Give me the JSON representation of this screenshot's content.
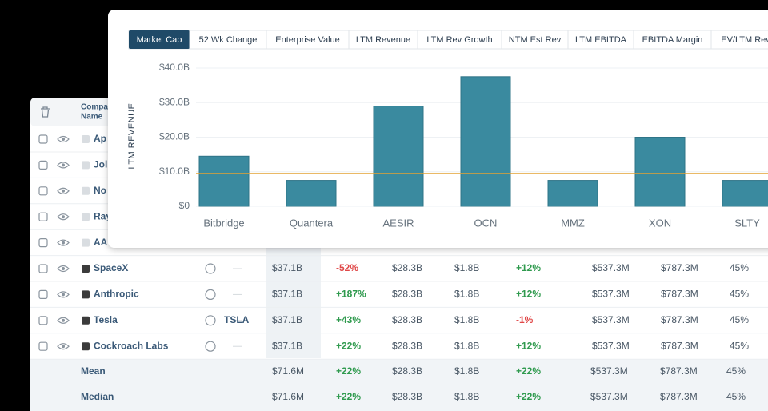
{
  "tabs": [
    "Market Cap",
    "52 Wk Change",
    "Enterprise Value",
    "LTM Revenue",
    "LTM Rev Growth",
    "NTM Est Rev",
    "LTM EBITDA",
    "EBITDA Margin",
    "EV/LTM Rev"
  ],
  "chart_data": {
    "type": "bar",
    "y_label": "LTM REVENUE",
    "categories": [
      "Bitbridge",
      "Quantera",
      "AESIR",
      "OCN",
      "MMZ",
      "XON",
      "SLTY"
    ],
    "values": [
      14.5,
      7.5,
      29,
      37.5,
      7.5,
      20,
      7.5
    ],
    "color": "#3a8a9f",
    "reference_line": 9.5,
    "reference_color": "#e3a233",
    "ylim": [
      0,
      40
    ],
    "yticks": [
      {
        "value": 0,
        "label": "$0"
      },
      {
        "value": 10,
        "label": "$10.0B"
      },
      {
        "value": 20,
        "label": "$20.0B"
      },
      {
        "value": 30,
        "label": "$30.0B"
      },
      {
        "value": 40,
        "label": "$40.0B"
      }
    ],
    "grid": true
  },
  "table": {
    "header": {
      "company_line1": "Company",
      "company_line2": "Name"
    },
    "rows": [
      {
        "name": "Ap"
      },
      {
        "name": "Jol"
      },
      {
        "name": "No"
      },
      {
        "name": "Ray"
      },
      {
        "name": "AA"
      },
      {
        "name": "SpaceX",
        "cells": [
          "$37.1B",
          "-52%",
          "$28.3B",
          "$1.8B",
          "+12%",
          "$537.3M",
          "$787.3M",
          "45%"
        ]
      },
      {
        "name": "Anthropic",
        "cells": [
          "$37.1B",
          "+187%",
          "$28.3B",
          "$1.8B",
          "+12%",
          "$537.3M",
          "$787.3M",
          "45%"
        ]
      },
      {
        "name": "Tesla",
        "ticker": "TSLA",
        "cells": [
          "$37.1B",
          "+43%",
          "$28.3B",
          "$1.8B",
          "-1%",
          "$537.3M",
          "$787.3M",
          "45%"
        ]
      },
      {
        "name": "Cockroach Labs",
        "cells": [
          "$37.1B",
          "+22%",
          "$28.3B",
          "$1.8B",
          "+12%",
          "$537.3M",
          "$787.3M",
          "45%"
        ]
      }
    ],
    "summary": [
      {
        "label": "Mean",
        "cells": [
          "$71.6M",
          "+22%",
          "$28.3B",
          "$1.8B",
          "+22%",
          "$537.3M",
          "$787.3M",
          "45%"
        ]
      },
      {
        "label": "Median",
        "cells": [
          "$71.6M",
          "+22%",
          "$28.3B",
          "$1.8B",
          "+22%",
          "$537.3M",
          "$787.3M",
          "45%"
        ]
      }
    ]
  }
}
